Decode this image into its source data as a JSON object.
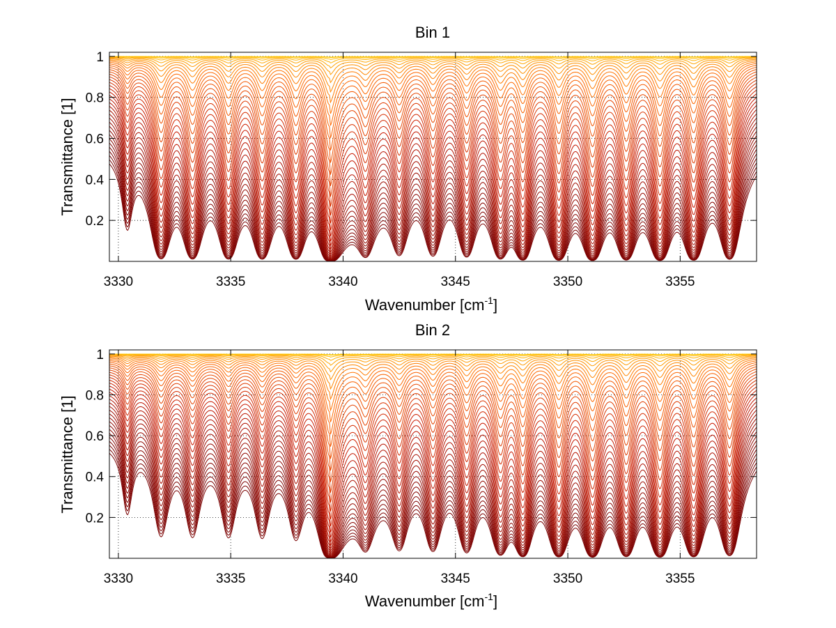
{
  "chart_data": [
    {
      "type": "line",
      "title": "Bin 1",
      "xlabel": "Wavenumber [cm",
      "xlabel_sup": "-1",
      "xlabel_end": "]",
      "ylabel": "Transmittance [1]",
      "xlim": [
        3329.6,
        3358.4
      ],
      "ylim": [
        0,
        1.02
      ],
      "x_ticks": [
        3330,
        3335,
        3340,
        3345,
        3350,
        3355
      ],
      "x_tick_labels": [
        "3330",
        "3335",
        "3340",
        "3345",
        "3350",
        "3355"
      ],
      "y_ticks": [
        0.2,
        0.4,
        0.6,
        0.8,
        1
      ],
      "y_tick_labels": [
        "0.2",
        "0.4",
        "0.6",
        "0.8",
        "1"
      ],
      "grid": true,
      "line_count": 40,
      "color_map": [
        "#7a0000",
        "#c81800",
        "#ff6a00",
        "#ffd000"
      ],
      "absorption_lines": [
        {
          "x": 3330.4,
          "strength": 0.25,
          "width": 0.22
        },
        {
          "x": 3331.9,
          "strength": 0.8,
          "width": 0.3
        },
        {
          "x": 3333.3,
          "strength": 0.8,
          "width": 0.3
        },
        {
          "x": 3334.9,
          "strength": 0.8,
          "width": 0.3
        },
        {
          "x": 3336.4,
          "strength": 0.8,
          "width": 0.3
        },
        {
          "x": 3337.9,
          "strength": 0.8,
          "width": 0.3
        },
        {
          "x": 3339.4,
          "strength": 1.3,
          "width": 0.28
        },
        {
          "x": 3341.0,
          "strength": 0.55,
          "width": 0.3
        },
        {
          "x": 3342.5,
          "strength": 0.55,
          "width": 0.3
        },
        {
          "x": 3344.0,
          "strength": 0.6,
          "width": 0.3
        },
        {
          "x": 3345.5,
          "strength": 0.65,
          "width": 0.3
        },
        {
          "x": 3347.0,
          "strength": 0.75,
          "width": 0.3
        },
        {
          "x": 3348.0,
          "strength": 0.9,
          "width": 0.28
        },
        {
          "x": 3349.6,
          "strength": 0.95,
          "width": 0.3
        },
        {
          "x": 3351.1,
          "strength": 1.0,
          "width": 0.3
        },
        {
          "x": 3352.6,
          "strength": 0.9,
          "width": 0.3
        },
        {
          "x": 3354.1,
          "strength": 1.0,
          "width": 0.3
        },
        {
          "x": 3355.6,
          "strength": 0.95,
          "width": 0.3
        },
        {
          "x": 3357.2,
          "strength": 0.85,
          "width": 0.3
        }
      ]
    },
    {
      "type": "line",
      "title": "Bin 2",
      "xlabel": "Wavenumber [cm",
      "xlabel_sup": "-1",
      "xlabel_end": "]",
      "ylabel": "Transmittance [1]",
      "xlim": [
        3329.6,
        3358.4
      ],
      "ylim": [
        0,
        1.02
      ],
      "x_ticks": [
        3330,
        3335,
        3340,
        3345,
        3350,
        3355
      ],
      "x_tick_labels": [
        "3330",
        "3335",
        "3340",
        "3345",
        "3350",
        "3355"
      ],
      "y_ticks": [
        0.2,
        0.4,
        0.6,
        0.8,
        1
      ],
      "y_tick_labels": [
        "0.2",
        "0.4",
        "0.6",
        "0.8",
        "1"
      ],
      "grid": true,
      "line_count": 40,
      "color_map": [
        "#7a0000",
        "#c81800",
        "#ff6a00",
        "#ffd000"
      ],
      "absorption_lines": [
        {
          "x": 3330.4,
          "strength": 0.2,
          "width": 0.22
        },
        {
          "x": 3331.9,
          "strength": 0.35,
          "width": 0.3
        },
        {
          "x": 3333.3,
          "strength": 0.35,
          "width": 0.3
        },
        {
          "x": 3334.9,
          "strength": 0.35,
          "width": 0.3
        },
        {
          "x": 3336.4,
          "strength": 0.35,
          "width": 0.3
        },
        {
          "x": 3337.9,
          "strength": 0.35,
          "width": 0.3
        },
        {
          "x": 3339.4,
          "strength": 1.3,
          "width": 0.28
        },
        {
          "x": 3341.0,
          "strength": 0.45,
          "width": 0.3
        },
        {
          "x": 3342.5,
          "strength": 0.5,
          "width": 0.3
        },
        {
          "x": 3344.0,
          "strength": 0.55,
          "width": 0.3
        },
        {
          "x": 3345.5,
          "strength": 0.6,
          "width": 0.3
        },
        {
          "x": 3347.0,
          "strength": 0.7,
          "width": 0.3
        },
        {
          "x": 3348.0,
          "strength": 0.85,
          "width": 0.28
        },
        {
          "x": 3349.6,
          "strength": 0.9,
          "width": 0.3
        },
        {
          "x": 3351.1,
          "strength": 0.95,
          "width": 0.3
        },
        {
          "x": 3352.6,
          "strength": 0.85,
          "width": 0.3
        },
        {
          "x": 3354.1,
          "strength": 0.95,
          "width": 0.3
        },
        {
          "x": 3355.6,
          "strength": 0.9,
          "width": 0.3
        },
        {
          "x": 3357.2,
          "strength": 0.8,
          "width": 0.3
        }
      ]
    }
  ]
}
